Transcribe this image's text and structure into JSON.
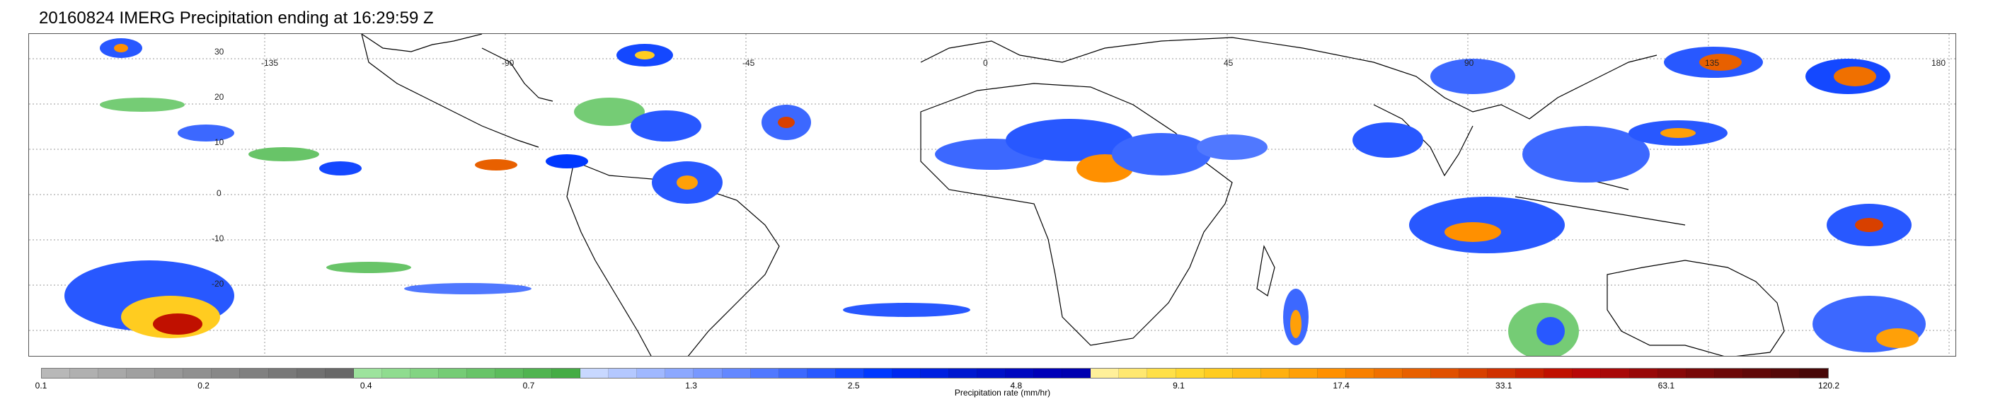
{
  "title": "20160824 IMERG Precipitation ending at 16:29:59 Z",
  "map": {
    "lat_labels": [
      "30",
      "20",
      "10",
      "0",
      "-10",
      "-20"
    ],
    "lon_labels": [
      "-135",
      "-90",
      "-45",
      "0",
      "45",
      "90",
      "135",
      "180"
    ],
    "background": "#ffffff",
    "coastline_color": "#000000",
    "grid_style": "dotted"
  },
  "colorbar": {
    "label": "Precipitation rate (mm/hr)",
    "tick_labels": [
      "0.1",
      "0.2",
      "0.4",
      "0.7",
      "1.3",
      "2.5",
      "4.8",
      "9.1",
      "17.4",
      "33.1",
      "63.1",
      "120.2"
    ],
    "colors": [
      "#b8b8b8",
      "#b0b0b0",
      "#a8a8a8",
      "#a0a0a0",
      "#989898",
      "#909090",
      "#888888",
      "#808080",
      "#787878",
      "#707070",
      "#686868",
      "#9de39d",
      "#8fdc8f",
      "#82d482",
      "#75cc75",
      "#68c468",
      "#5cbc5c",
      "#50b450",
      "#45ac45",
      "#c8d8ff",
      "#b4c8ff",
      "#a0b8ff",
      "#8ca8ff",
      "#7898ff",
      "#6488ff",
      "#5078ff",
      "#3c68ff",
      "#2858ff",
      "#1448ff",
      "#0038ff",
      "#0028f0",
      "#0020e0",
      "#0018d0",
      "#0010c8",
      "#0008c0",
      "#0000b8",
      "#0000b0",
      "#fff09a",
      "#ffe870",
      "#ffe048",
      "#ffd830",
      "#ffcc20",
      "#ffbe18",
      "#ffb010",
      "#ffa008",
      "#ff9000",
      "#f88000",
      "#f07000",
      "#e86000",
      "#e05000",
      "#d84000",
      "#d03000",
      "#c82000",
      "#c01000",
      "#b80808",
      "#a80808",
      "#980808",
      "#880808",
      "#780808",
      "#6c0808",
      "#600808",
      "#540808",
      "#480808"
    ]
  }
}
